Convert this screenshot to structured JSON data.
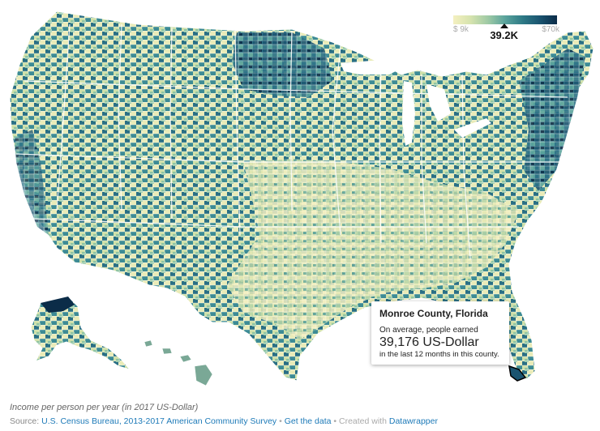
{
  "legend": {
    "min_label": "$ 9k",
    "max_label": "$70k",
    "selected_label": "39.2K",
    "min_value": 9000,
    "max_value": 70000,
    "selected_value": 39176,
    "colors": [
      "#f4f0c0",
      "#d6e3ae",
      "#9fcaa5",
      "#5aa39c",
      "#2e7a86",
      "#1a5470",
      "#0b2c48"
    ]
  },
  "tooltip": {
    "title": "Monroe County, Florida",
    "line1": "On average, people earned",
    "amount": "39,176 US-Dollar",
    "line2": "in the last 12 months in this county."
  },
  "caption": "Income per person per year (in 2017 US-Dollar)",
  "source": {
    "prefix": "Source: ",
    "source_link": "U.S. Census Bureau, 2013-2017 American Community Survey",
    "sep1": " • ",
    "data_link": "Get the data",
    "sep2": " • Created with ",
    "tool_link": "Datawrapper"
  },
  "map": {
    "background": "#ffffff",
    "border_color": "#ffffff",
    "regions": [
      "contiguous-us",
      "alaska",
      "hawaii"
    ],
    "selected_county": "Monroe County, Florida"
  }
}
